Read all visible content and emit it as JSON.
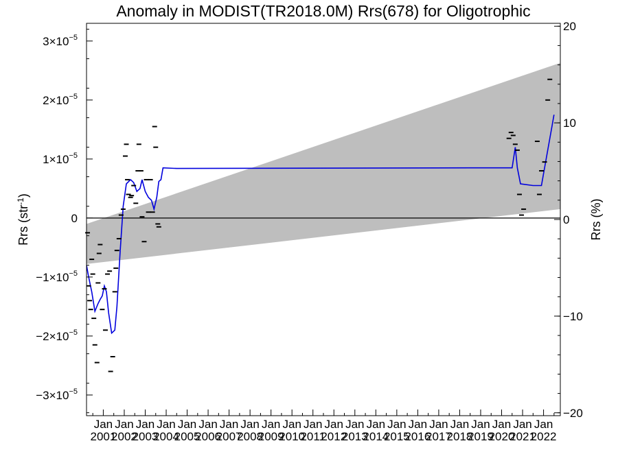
{
  "chart_data": {
    "type": "line",
    "title": "Anomaly in MODIST(TR2018.0M) Rrs(678) for Oligotrophic",
    "ylabel": "Rrs (str",
    "ylabel_sup": "-1",
    "ylabel_close": ")",
    "y2label": "Rrs (%)",
    "xlim": [
      2000.2,
      2022.8
    ],
    "ylim": [
      -3.35e-05,
      3.3e-05
    ],
    "y2lim": [
      -20.3,
      20.3
    ],
    "grid": false,
    "y_ticks": [
      {
        "value": 3e-05,
        "base": "3×10",
        "exp": "−5"
      },
      {
        "value": 2e-05,
        "base": "2×10",
        "exp": "−5"
      },
      {
        "value": 1e-05,
        "base": "1×10",
        "exp": "−5"
      },
      {
        "value": 0,
        "base": "0",
        "exp": ""
      },
      {
        "value": -1e-05,
        "base": "−1×10",
        "exp": "−5"
      },
      {
        "value": -2e-05,
        "base": "−2×10",
        "exp": "−5"
      },
      {
        "value": -3e-05,
        "base": "−3×10",
        "exp": "−5"
      }
    ],
    "y2_ticks": [
      {
        "value": 20,
        "label": "20"
      },
      {
        "value": 10,
        "label": "10"
      },
      {
        "value": 0,
        "label": "0"
      },
      {
        "value": -10,
        "label": "−10"
      },
      {
        "value": -20,
        "label": "−20"
      }
    ],
    "x_ticks": [
      {
        "value": 2001,
        "month": "Jan",
        "year": "2001"
      },
      {
        "value": 2002,
        "month": "Jan",
        "year": "2002"
      },
      {
        "value": 2003,
        "month": "Jan",
        "year": "2003"
      },
      {
        "value": 2004,
        "month": "Jan",
        "year": "2004"
      },
      {
        "value": 2005,
        "month": "Jan",
        "year": "2005"
      },
      {
        "value": 2006,
        "month": "Jan",
        "year": "2006"
      },
      {
        "value": 2007,
        "month": "Jan",
        "year": "2007"
      },
      {
        "value": 2008,
        "month": "Jan",
        "year": "2008"
      },
      {
        "value": 2009,
        "month": "Jan",
        "year": "2009"
      },
      {
        "value": 2010,
        "month": "Jan",
        "year": "2010"
      },
      {
        "value": 2011,
        "month": "Jan",
        "year": "2011"
      },
      {
        "value": 2012,
        "month": "Jan",
        "year": "2012"
      },
      {
        "value": 2013,
        "month": "Jan",
        "year": "2013"
      },
      {
        "value": 2014,
        "month": "Jan",
        "year": "2014"
      },
      {
        "value": 2015,
        "month": "Jan",
        "year": "2015"
      },
      {
        "value": 2016,
        "month": "Jan",
        "year": "2016"
      },
      {
        "value": 2017,
        "month": "Jan",
        "year": "2017"
      },
      {
        "value": 2018,
        "month": "Jan",
        "year": "2018"
      },
      {
        "value": 2019,
        "month": "Jan",
        "year": "2019"
      },
      {
        "value": 2020,
        "month": "Jan",
        "year": "2020"
      },
      {
        "value": 2021,
        "month": "Jan",
        "year": "2021"
      },
      {
        "value": 2022,
        "month": "Jan",
        "year": "2022"
      }
    ],
    "band": {
      "color": "#bebebe",
      "upper": [
        [
          2000.2,
          -1e-06
        ],
        [
          2022.8,
          2.63e-05
        ]
      ],
      "lower": [
        [
          2000.2,
          -7.8e-06
        ],
        [
          2022.8,
          1.5e-06
        ]
      ]
    },
    "zero_line": 0,
    "series": [
      {
        "color": "#0000dd",
        "values": [
          [
            2000.2,
            -8e-06
          ],
          [
            2000.3,
            -1e-05
          ],
          [
            2000.45,
            -1.25e-05
          ],
          [
            2000.6,
            -1.58e-05
          ],
          [
            2000.75,
            -1.45e-05
          ],
          [
            2000.85,
            -1.38e-05
          ],
          [
            2000.95,
            -1.32e-05
          ],
          [
            2001.05,
            -1.15e-05
          ],
          [
            2001.15,
            -1.25e-05
          ],
          [
            2001.25,
            -1.6e-05
          ],
          [
            2001.4,
            -1.95e-05
          ],
          [
            2001.55,
            -1.9e-05
          ],
          [
            2001.65,
            -1.5e-05
          ],
          [
            2001.8,
            -6e-06
          ],
          [
            2001.95,
            2e-06
          ],
          [
            2002.1,
            5.8e-06
          ],
          [
            2002.3,
            6.5e-06
          ],
          [
            2002.45,
            6e-06
          ],
          [
            2002.6,
            4.5e-06
          ],
          [
            2002.75,
            5e-06
          ],
          [
            2002.85,
            6.5e-06
          ],
          [
            2003.0,
            4.5e-06
          ],
          [
            2003.15,
            3.5e-06
          ],
          [
            2003.3,
            3e-06
          ],
          [
            2003.42,
            1.5e-06
          ],
          [
            2003.55,
            3.5e-06
          ],
          [
            2003.65,
            6.2e-06
          ],
          [
            2003.75,
            6.5e-06
          ],
          [
            2003.85,
            8.5e-06
          ],
          [
            2004.5,
            8.4e-06
          ],
          [
            2018.5,
            8.5e-06
          ],
          [
            2020.5,
            8.5e-06
          ],
          [
            2020.65,
            1.2e-05
          ],
          [
            2020.75,
            8.5e-06
          ],
          [
            2020.9,
            5.8e-06
          ],
          [
            2021.5,
            5.5e-06
          ],
          [
            2021.9,
            5.5e-06
          ],
          [
            2022.1,
            9.5e-06
          ],
          [
            2022.4,
            1.55e-05
          ],
          [
            2022.5,
            1.75e-05
          ]
        ]
      }
    ],
    "points": [
      [
        2000.25,
        -2.5e-06
      ],
      [
        2000.3,
        -1.15e-05
      ],
      [
        2000.35,
        -1.4e-05
      ],
      [
        2000.4,
        -1.55e-05
      ],
      [
        2000.45,
        -7e-06
      ],
      [
        2000.5,
        -9.5e-06
      ],
      [
        2000.55,
        -1.7e-05
      ],
      [
        2000.6,
        -2.15e-05
      ],
      [
        2000.7,
        -2.45e-05
      ],
      [
        2000.75,
        -1.1e-05
      ],
      [
        2000.8,
        -6e-06
      ],
      [
        2000.85,
        -4.5e-06
      ],
      [
        2000.95,
        -1.55e-05
      ],
      [
        2001.05,
        -1.2e-05
      ],
      [
        2001.1,
        -1.9e-05
      ],
      [
        2001.2,
        -9.5e-06
      ],
      [
        2001.3,
        -9e-06
      ],
      [
        2001.35,
        -2.6e-05
      ],
      [
        2001.45,
        -2.35e-05
      ],
      [
        2001.55,
        -1.25e-05
      ],
      [
        2001.6,
        -8.5e-06
      ],
      [
        2001.65,
        -5.5e-06
      ],
      [
        2001.75,
        -3.5e-06
      ],
      [
        2001.85,
        5e-07
      ],
      [
        2001.95,
        1.5e-06
      ],
      [
        2002.05,
        1.05e-05
      ],
      [
        2002.1,
        1.25e-05
      ],
      [
        2002.15,
        6.5e-06
      ],
      [
        2002.2,
        4e-06
      ],
      [
        2002.3,
        3.5e-06
      ],
      [
        2002.35,
        3.8e-06
      ],
      [
        2002.45,
        5.5e-06
      ],
      [
        2002.55,
        2.5e-06
      ],
      [
        2002.65,
        8e-06
      ],
      [
        2002.7,
        1.25e-05
      ],
      [
        2002.8,
        8e-06
      ],
      [
        2002.85,
        2e-07
      ],
      [
        2002.95,
        -4e-06
      ],
      [
        2003.05,
        6.5e-06
      ],
      [
        2003.15,
        1e-06
      ],
      [
        2003.25,
        6.5e-06
      ],
      [
        2003.35,
        1e-06
      ],
      [
        2003.45,
        1.55e-05
      ],
      [
        2003.5,
        1.2e-05
      ],
      [
        2003.6,
        -1e-06
      ],
      [
        2003.65,
        -1.5e-06
      ],
      [
        2020.35,
        1.35e-05
      ],
      [
        2020.45,
        1.45e-05
      ],
      [
        2020.55,
        1.4e-05
      ],
      [
        2020.65,
        1.25e-05
      ],
      [
        2020.75,
        1.15e-05
      ],
      [
        2020.85,
        4e-06
      ],
      [
        2020.95,
        5e-07
      ],
      [
        2021.05,
        1.5e-06
      ],
      [
        2021.7,
        1.3e-05
      ],
      [
        2021.8,
        4e-06
      ],
      [
        2021.9,
        8e-06
      ],
      [
        2022.05,
        9.5e-06
      ],
      [
        2022.2,
        2e-05
      ],
      [
        2022.3,
        2.35e-05
      ]
    ]
  }
}
